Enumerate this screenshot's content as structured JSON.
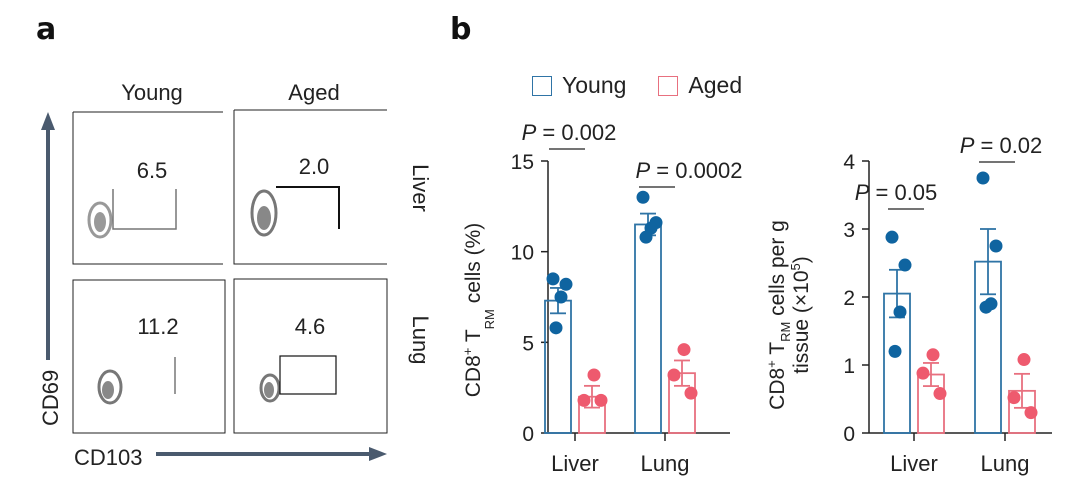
{
  "panel_a": {
    "letter": "a",
    "col_labels": [
      "Young",
      "Aged"
    ],
    "row_labels": [
      "Liver",
      "Lung"
    ],
    "x_axis_label": "CD103",
    "y_axis_label": "CD69",
    "gates": [
      {
        "row": "Liver",
        "col": "Young",
        "percent": "6.5"
      },
      {
        "row": "Liver",
        "col": "Aged",
        "percent": "2.0"
      },
      {
        "row": "Lung",
        "col": "Young",
        "percent": "11.2"
      },
      {
        "row": "Lung",
        "col": "Aged",
        "percent": "4.6"
      }
    ],
    "arrow_color": "#4a5a6e"
  },
  "panel_b": {
    "letter": "b",
    "legend": [
      {
        "label": "Young",
        "color": "#2f74a6"
      },
      {
        "label": "Aged",
        "color": "#e8707f"
      }
    ]
  },
  "chart_data": [
    {
      "type": "bar",
      "title": "",
      "xlabel": "",
      "ylabel": "CD8+ TRM cells (%)",
      "ylabel_parts": {
        "main": "CD8",
        "sup": "+",
        "t": " T",
        "sub": "RM",
        "rest": " cells (%)"
      },
      "categories": [
        "Liver",
        "Lung"
      ],
      "ylim": [
        0,
        15
      ],
      "yticks": [
        0,
        5,
        10,
        15
      ],
      "series": [
        {
          "name": "Young",
          "values": [
            7.3,
            11.5
          ],
          "errors": [
            0.7,
            0.6
          ],
          "points": [
            [
              8.5,
              8.2,
              7.5,
              5.8
            ],
            [
              13.0,
              11.6,
              11.3,
              10.8
            ]
          ]
        },
        {
          "name": "Aged",
          "values": [
            2.0,
            3.3
          ],
          "errors": [
            0.6,
            0.7
          ],
          "points": [
            [
              3.2,
              1.8,
              1.8
            ],
            [
              4.6,
              3.2,
              2.2
            ]
          ]
        }
      ],
      "annotations": [
        {
          "category": "Liver",
          "text_italic": "P",
          "text": " = 0.002"
        },
        {
          "category": "Lung",
          "text_italic": "P",
          "text": " = 0.0002"
        }
      ]
    },
    {
      "type": "bar",
      "title": "",
      "xlabel": "",
      "ylabel": "CD8+ TRM cells per g tissue (×10^5)",
      "ylabel_parts": {
        "line1_main": "CD8",
        "sup": "+",
        "t": " T",
        "sub": "RM",
        "line1_rest": " cells per g",
        "line2": "tissue (×10",
        "line2_sup": "5",
        "line2_end": ")"
      },
      "categories": [
        "Liver",
        "Lung"
      ],
      "ylim": [
        0,
        4
      ],
      "yticks": [
        0,
        1,
        2,
        3,
        4
      ],
      "series": [
        {
          "name": "Young",
          "values": [
            2.05,
            2.52
          ],
          "errors": [
            0.35,
            0.48
          ],
          "points": [
            [
              2.88,
              2.47,
              1.78,
              1.2
            ],
            [
              3.75,
              2.75,
              1.9,
              1.85
            ]
          ]
        },
        {
          "name": "Aged",
          "values": [
            0.86,
            0.62
          ],
          "errors": [
            0.17,
            0.25
          ],
          "points": [
            [
              1.15,
              0.88,
              0.58
            ],
            [
              1.08,
              0.52,
              0.3
            ]
          ]
        }
      ],
      "annotations": [
        {
          "category": "Liver",
          "text_italic": "P",
          "text": " = 0.05"
        },
        {
          "category": "Lung",
          "text_italic": "P",
          "text": " = 0.02"
        }
      ]
    }
  ]
}
